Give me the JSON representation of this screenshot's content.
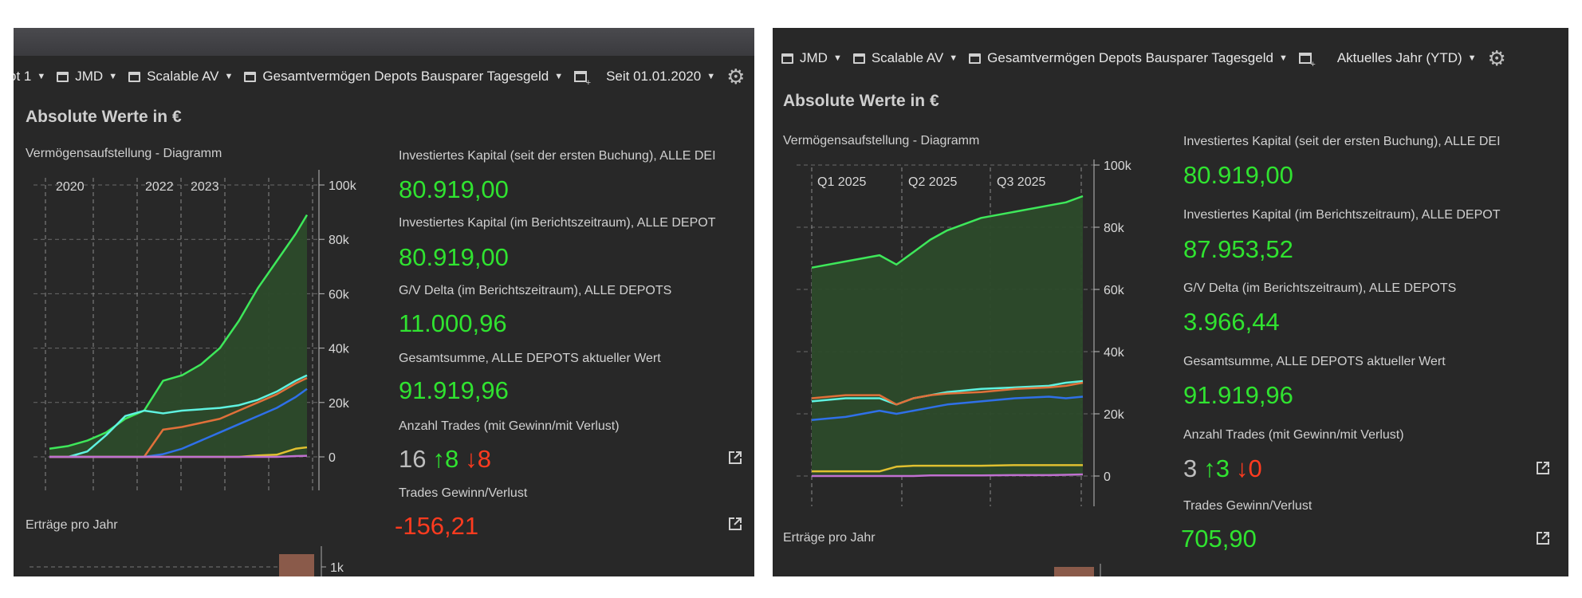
{
  "left": {
    "toolbar": {
      "items": [
        {
          "label": "ot 1",
          "icon": "none"
        },
        {
          "label": "JMD",
          "icon": "window-icon"
        },
        {
          "label": "Scalable AV",
          "icon": "window-icon"
        },
        {
          "label": "Gesamtvermögen Depots Bausparer Tagesgeld",
          "icon": "window-icon"
        }
      ],
      "period": "Seit 01.01.2020"
    },
    "heading": "Absolute Werte in €",
    "diagram_label": "Vermögensaufstellung - Diagramm",
    "kpis": [
      {
        "label": "Investiertes Kapital (seit der ersten Buchung), ALLE DEI",
        "value": "80.919,00"
      },
      {
        "label": "Investiertes Kapital (im Berichtszeitraum), ALLE DEPOT",
        "value": "80.919,00"
      },
      {
        "label": "G/V Delta (im Berichtszeitraum), ALLE DEPOTS",
        "value": "11.000,96"
      },
      {
        "label": "Gesamtsumme, ALLE DEPOTS aktueller Wert",
        "value": "91.919,96"
      }
    ],
    "trades": {
      "label": "Anzahl Trades (mit Gewinn/mit Verlust)",
      "total": "16",
      "win": "↑8",
      "loss": "↓8"
    },
    "trades_pl": {
      "label": "Trades Gewinn/Verlust",
      "value": "-156,21"
    },
    "ertraege_label": "Erträge pro Jahr",
    "ertraege_tick": "1k",
    "chart_data": {
      "type": "area",
      "x_period_labels": [
        "2020",
        "2022",
        "2023"
      ],
      "y_ticks": [
        "100k",
        "80k",
        "60k",
        "40k",
        "20k",
        "0"
      ],
      "ylim": [
        0,
        100000
      ],
      "x": [
        2019.0,
        2019.5,
        2020.0,
        2020.5,
        2021.0,
        2021.5,
        2022.0,
        2022.5,
        2023.0,
        2023.5,
        2024.0,
        2024.5,
        2025.0,
        2025.5,
        2025.8
      ],
      "series": [
        {
          "color": "#3ee85a",
          "fill": true,
          "values": [
            3000,
            4000,
            6000,
            9000,
            14000,
            17000,
            28000,
            30000,
            34000,
            40000,
            50000,
            62000,
            72000,
            82000,
            89000
          ]
        },
        {
          "color": "#5ff2e0",
          "values": [
            0,
            0,
            2000,
            8000,
            15000,
            17000,
            16000,
            17000,
            17500,
            18000,
            19000,
            21000,
            24000,
            28000,
            30000
          ]
        },
        {
          "color": "#e0703a",
          "values": [
            0,
            0,
            0,
            0,
            0,
            0,
            10000,
            11000,
            12500,
            14000,
            17000,
            20000,
            23000,
            27000,
            29000
          ]
        },
        {
          "color": "#2f70e8",
          "values": [
            0,
            0,
            0,
            0,
            0,
            0,
            1000,
            3000,
            6000,
            9000,
            12000,
            15000,
            18000,
            22000,
            25000
          ]
        },
        {
          "color": "#e0c030",
          "values": [
            0,
            0,
            0,
            0,
            0,
            0,
            0,
            0,
            0,
            0,
            0,
            500,
            800,
            3000,
            3500
          ]
        },
        {
          "color": "#c070d0",
          "values": [
            0,
            0,
            0,
            0,
            0,
            0,
            0,
            0,
            0,
            0,
            0,
            0,
            0,
            300,
            400
          ]
        }
      ]
    }
  },
  "right": {
    "toolbar": {
      "items": [
        {
          "label": "JMD",
          "icon": "window-icon"
        },
        {
          "label": "Scalable AV",
          "icon": "window-icon"
        },
        {
          "label": "Gesamtvermögen Depots Bausparer Tagesgeld",
          "icon": "window-icon"
        }
      ],
      "period": "Aktuelles Jahr (YTD)"
    },
    "heading": "Absolute Werte in €",
    "diagram_label": "Vermögensaufstellung - Diagramm",
    "kpis": [
      {
        "label": "Investiertes Kapital (seit der ersten Buchung), ALLE DEI",
        "value": "80.919,00"
      },
      {
        "label": "Investiertes Kapital (im Berichtszeitraum), ALLE DEPOT",
        "value": "87.953,52"
      },
      {
        "label": "G/V Delta (im Berichtszeitraum), ALLE DEPOTS",
        "value": "3.966,44"
      },
      {
        "label": "Gesamtsumme, ALLE DEPOTS aktueller Wert",
        "value": "91.919,96"
      }
    ],
    "trades": {
      "label": "Anzahl Trades (mit Gewinn/mit Verlust)",
      "total": "3",
      "win": "↑3",
      "loss": "↓0"
    },
    "trades_pl": {
      "label": "Trades Gewinn/Verlust",
      "value": "705,90"
    },
    "ertraege_label": "Erträge pro Jahr",
    "chart_data": {
      "type": "area",
      "x_period_labels": [
        "Q1 2025",
        "Q2 2025",
        "Q3 2025"
      ],
      "y_ticks": [
        "100k",
        "80k",
        "60k",
        "40k",
        "20k",
        "0"
      ],
      "ylim": [
        0,
        100000
      ],
      "x": [
        0,
        0.4,
        0.8,
        1.0,
        1.2,
        1.4,
        1.6,
        2.0,
        2.4,
        2.8,
        3.0,
        3.2
      ],
      "series": [
        {
          "color": "#3ee85a",
          "fill": true,
          "values": [
            67000,
            69000,
            71000,
            68000,
            72000,
            76000,
            79000,
            83000,
            85000,
            87000,
            88000,
            90000
          ]
        },
        {
          "color": "#5ff2e0",
          "values": [
            24000,
            25000,
            25000,
            23000,
            25000,
            26000,
            27000,
            28000,
            28500,
            29000,
            30000,
            30500
          ]
        },
        {
          "color": "#e0703a",
          "values": [
            25000,
            26000,
            26000,
            23000,
            25000,
            26000,
            26500,
            27000,
            28000,
            28500,
            29000,
            30000
          ]
        },
        {
          "color": "#2f70e8",
          "values": [
            18000,
            19000,
            21000,
            20000,
            21000,
            22000,
            23000,
            24000,
            25000,
            25500,
            25000,
            25500
          ]
        },
        {
          "color": "#e0c030",
          "values": [
            1500,
            1500,
            1500,
            3000,
            3300,
            3300,
            3300,
            3300,
            3500,
            3500,
            3500,
            3500
          ]
        },
        {
          "color": "#c070d0",
          "values": [
            0,
            0,
            0,
            0,
            0,
            200,
            200,
            200,
            300,
            300,
            400,
            500
          ]
        }
      ]
    }
  }
}
